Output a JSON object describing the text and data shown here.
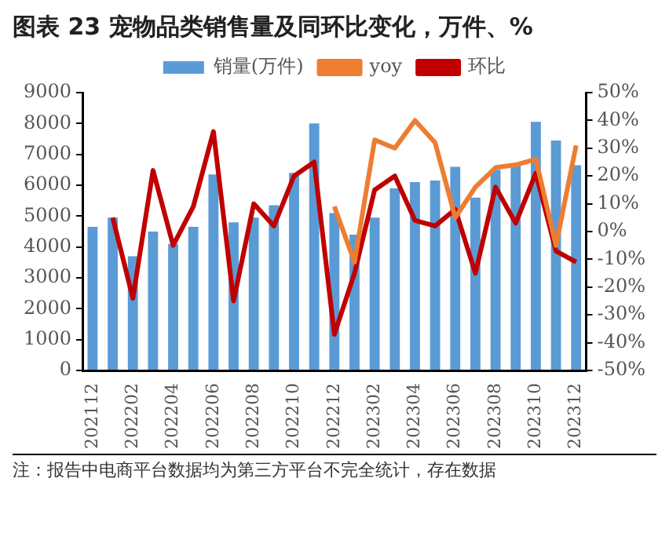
{
  "chart_data": {
    "type": "bar",
    "title": "图表 23 宠物品类销售量及同环比变化，万件、%",
    "categories": [
      "202112",
      null,
      "202202",
      null,
      "202204",
      null,
      "202206",
      null,
      "202208",
      null,
      "202210",
      null,
      "202212",
      null,
      "202302",
      null,
      "202304",
      null,
      "202306",
      null,
      "202308",
      null,
      "202310",
      null,
      "202312"
    ],
    "series": [
      {
        "name": "销量(万件)",
        "color": "#5b9bd5",
        "values": [
          4650,
          4950,
          3700,
          4500,
          4100,
          4650,
          6350,
          4800,
          4950,
          5350,
          6400,
          8000,
          5100,
          4400,
          4950,
          5900,
          6100,
          6150,
          6600,
          5600,
          6500,
          6650,
          8050,
          7450,
          6650
        ]
      },
      {
        "name": "yoy",
        "type": "line",
        "axis": "y2",
        "color": "#ed7d31",
        "values": [
          null,
          null,
          null,
          null,
          null,
          null,
          null,
          null,
          null,
          null,
          null,
          null,
          9,
          -11,
          33,
          30,
          40,
          32,
          5,
          16,
          23,
          24,
          26,
          -5,
          31
        ]
      },
      {
        "name": "环比",
        "type": "line",
        "axis": "y2",
        "color": "#c00000",
        "values": [
          null,
          5,
          -24,
          22,
          -5,
          9,
          36,
          -25,
          10,
          2,
          20,
          25,
          -37,
          -15,
          15,
          20,
          4,
          2,
          8,
          -15,
          16,
          3,
          21,
          -7,
          -11
        ]
      }
    ],
    "ylim": [
      0,
      9000
    ],
    "yticks": [
      0,
      1000,
      2000,
      3000,
      4000,
      5000,
      6000,
      7000,
      8000,
      9000
    ],
    "y2lim": [
      -50,
      50
    ],
    "y2ticks": [
      {
        "value": -50,
        "label": "-50%"
      },
      {
        "value": -40,
        "label": "-40%"
      },
      {
        "value": -30,
        "label": "-30%"
      },
      {
        "value": -20,
        "label": "-20%"
      },
      {
        "value": -10,
        "label": "-10%"
      },
      {
        "value": 0,
        "label": "0%"
      },
      {
        "value": 10,
        "label": "10%"
      },
      {
        "value": 20,
        "label": "20%"
      },
      {
        "value": 30,
        "label": "30%"
      },
      {
        "value": 40,
        "label": "40%"
      },
      {
        "value": 50,
        "label": "50%"
      }
    ],
    "legend": "top",
    "grid": false,
    "marker": "none",
    "line_style": "solid",
    "annotations": [
      "注：报告中电商平台数据均为第三方平台不完全统计，存在数据"
    ]
  }
}
